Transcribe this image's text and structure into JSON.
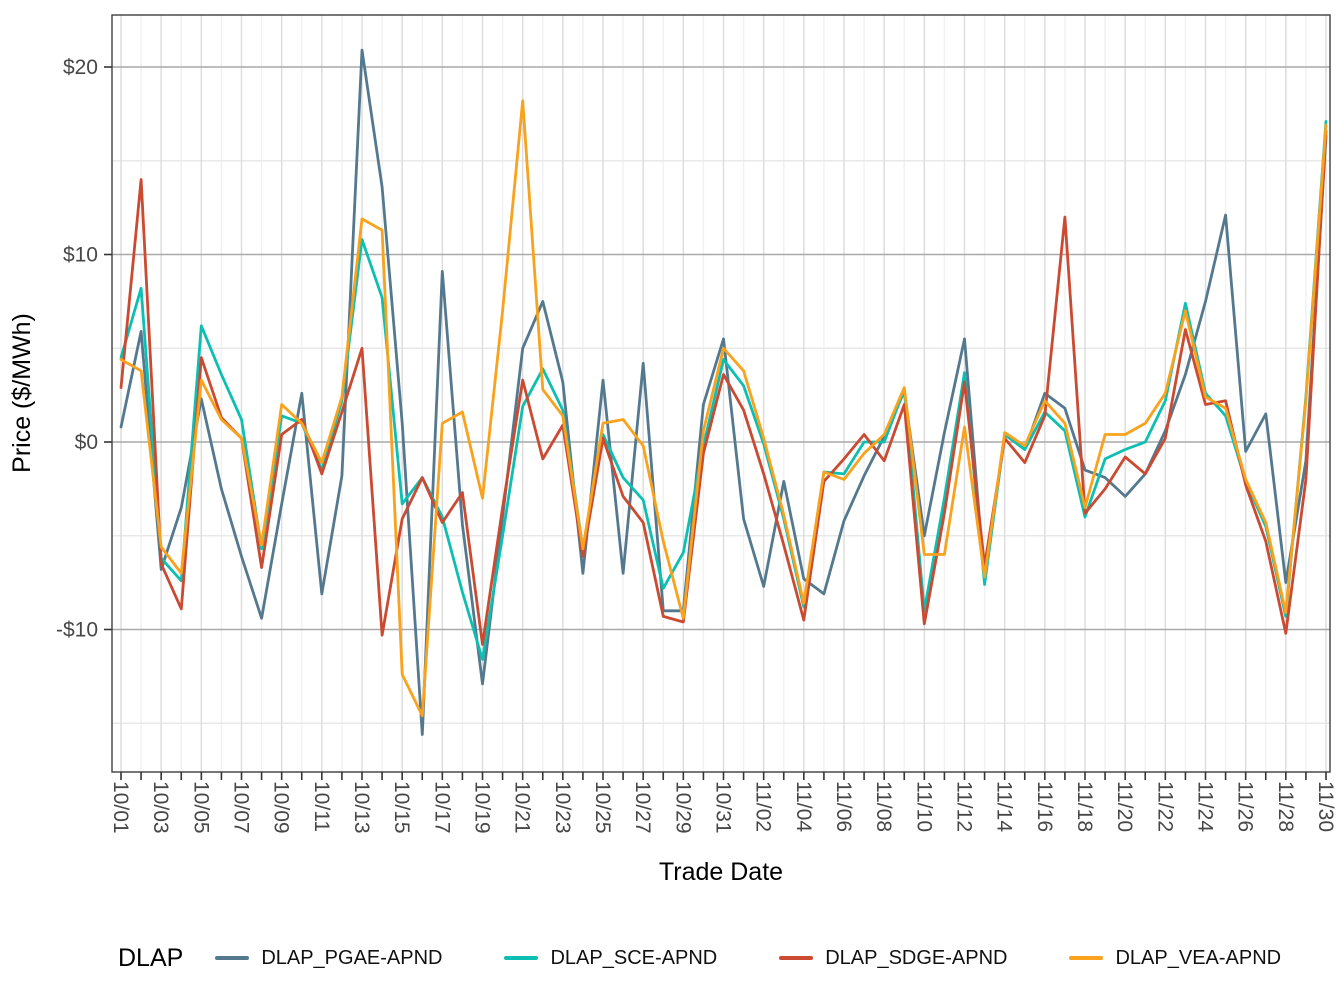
{
  "chart_data": {
    "type": "line",
    "title": "",
    "xlabel": "Trade Date",
    "ylabel": "Price ($/MWh)",
    "legend_title": "DLAP",
    "legend_position": "bottom",
    "grid": "on",
    "ylim": [
      -17.6,
      22.8
    ],
    "y_ticks": [
      {
        "label": "$20",
        "value": 20
      },
      {
        "label": "$10",
        "value": 10
      },
      {
        "label": "$0",
        "value": 0
      },
      {
        "label": "-$10",
        "value": -10
      }
    ],
    "y_minor_ticks": [
      15,
      5,
      -5,
      -15
    ],
    "x_tick_label_rotation_deg": 90,
    "x": [
      "10/01",
      "10/02",
      "10/03",
      "10/04",
      "10/05",
      "10/06",
      "10/07",
      "10/08",
      "10/09",
      "10/10",
      "10/11",
      "10/12",
      "10/13",
      "10/14",
      "10/15",
      "10/16",
      "10/17",
      "10/18",
      "10/19",
      "10/20",
      "10/21",
      "10/22",
      "10/23",
      "10/24",
      "10/25",
      "10/26",
      "10/27",
      "10/28",
      "10/29",
      "10/30",
      "10/31",
      "11/01",
      "11/02",
      "11/03",
      "11/04",
      "11/05",
      "11/06",
      "11/07",
      "11/08",
      "11/09",
      "11/10",
      "11/11",
      "11/12",
      "11/13",
      "11/14",
      "11/15",
      "11/16",
      "11/17",
      "11/18",
      "11/19",
      "11/20",
      "11/21",
      "11/22",
      "11/23",
      "11/24",
      "11/25",
      "11/26",
      "11/27",
      "11/28",
      "11/29",
      "11/30"
    ],
    "x_labeled_every": 2,
    "series": [
      {
        "name": "DLAP_PGAE-APND",
        "color": "#54798F",
        "values": [
          0.8,
          5.9,
          -6.8,
          -3.5,
          2.3,
          -2.5,
          -6.1,
          -9.4,
          -3.3,
          2.6,
          -8.1,
          -1.8,
          20.9,
          13.6,
          1.0,
          -15.6,
          9.1,
          -4.4,
          -12.9,
          -4.0,
          5.0,
          7.5,
          3.2,
          -7.0,
          3.3,
          -7.0,
          4.2,
          -9.0,
          -9.0,
          2.0,
          5.5,
          -4.1,
          -7.7,
          -2.1,
          -7.3,
          -8.1,
          -4.2,
          -1.8,
          0.3,
          2.7,
          -5.0,
          0.5,
          5.5,
          -7.4,
          0.4,
          -0.4,
          2.6,
          1.8,
          -1.5,
          -1.9,
          -2.9,
          -1.7,
          0.6,
          3.6,
          7.5,
          12.1,
          -0.5,
          1.5,
          -7.5,
          -1.0,
          16.3
        ]
      },
      {
        "name": "DLAP_SCE-APND",
        "color": "#0DBFB2",
        "values": [
          4.5,
          8.2,
          -6.2,
          -7.4,
          6.2,
          3.6,
          1.2,
          -5.7,
          1.4,
          1.0,
          -1.5,
          2.2,
          10.8,
          7.7,
          -3.3,
          -1.9,
          -4.0,
          -8.0,
          -11.6,
          -5.0,
          1.9,
          3.9,
          1.7,
          -5.7,
          0.4,
          -1.9,
          -3.1,
          -7.8,
          -5.9,
          -0.2,
          4.4,
          3.0,
          -0.1,
          -4.1,
          -8.8,
          -1.6,
          -1.7,
          0.0,
          0.0,
          2.8,
          -9.0,
          -3.0,
          3.7,
          -7.6,
          0.4,
          -0.4,
          1.6,
          0.6,
          -4.0,
          -0.9,
          -0.4,
          0.0,
          2.2,
          7.4,
          2.6,
          1.4,
          -2.1,
          -4.5,
          -9.3,
          2.4,
          17.1
        ]
      },
      {
        "name": "DLAP_SDGE-APND",
        "color": "#CB4A32",
        "values": [
          2.9,
          14.0,
          -6.5,
          -8.9,
          4.5,
          1.3,
          0.2,
          -6.7,
          0.4,
          1.2,
          -1.7,
          1.6,
          5.0,
          -10.3,
          -4.1,
          -1.9,
          -4.3,
          -2.7,
          -10.8,
          -3.5,
          3.3,
          -0.9,
          0.9,
          -6.1,
          0.2,
          -2.9,
          -4.3,
          -9.3,
          -9.6,
          -0.6,
          3.6,
          1.7,
          -1.7,
          -5.5,
          -9.5,
          -2.1,
          -0.9,
          0.4,
          -1.0,
          2.0,
          -9.7,
          -3.8,
          3.2,
          -6.6,
          0.2,
          -1.1,
          1.4,
          12.0,
          -3.8,
          -2.5,
          -0.8,
          -1.7,
          0.2,
          6.0,
          2.0,
          2.2,
          -2.3,
          -5.3,
          -10.2,
          -2.0,
          16.6
        ]
      },
      {
        "name": "DLAP_VEA-APND",
        "color": "#F9A21D",
        "values": [
          4.4,
          3.8,
          -5.6,
          -7.0,
          3.3,
          1.2,
          0.2,
          -5.5,
          2.0,
          1.0,
          -1.1,
          2.4,
          11.9,
          11.3,
          -12.4,
          -14.6,
          1.0,
          1.6,
          -3.0,
          7.0,
          18.2,
          2.8,
          1.4,
          -5.7,
          1.0,
          1.2,
          -0.2,
          -5.3,
          -9.4,
          0.6,
          5.0,
          3.8,
          0.2,
          -3.9,
          -8.6,
          -1.6,
          -2.0,
          -0.6,
          0.4,
          2.9,
          -6.0,
          -6.0,
          0.8,
          -7.2,
          0.5,
          -0.2,
          2.2,
          1.0,
          -3.5,
          0.4,
          0.4,
          1.0,
          2.6,
          7.0,
          2.4,
          1.8,
          -2.0,
          -4.3,
          -9.1,
          2.2,
          16.9
        ]
      }
    ],
    "colors": {
      "panel_border": "#3F3F3F",
      "tick_mark": "#333333",
      "grid_major_h": "#A9A9A9",
      "grid_minor_h": "#E8E8E8",
      "grid_major_v": "#DCDCDC",
      "grid_minor_v": "#F1F1F1",
      "axis_text": "#474747",
      "background": "#FFFFFF"
    }
  }
}
